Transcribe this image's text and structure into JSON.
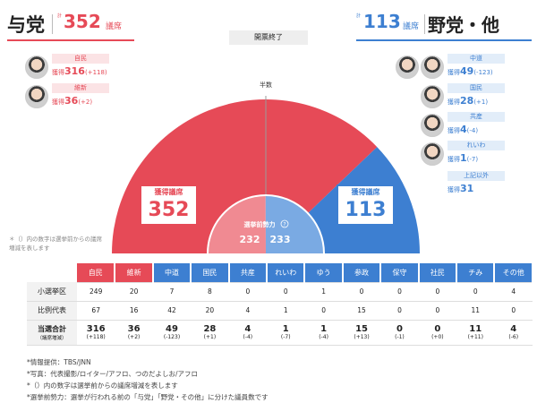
{
  "header": {
    "ruling": {
      "label": "与党",
      "total_prefix": "計",
      "seats": "352",
      "unit": "議席"
    },
    "opposition": {
      "label": "野党・他",
      "total_prefix": "計",
      "seats": "113",
      "unit": "議席"
    },
    "status": "開票終了"
  },
  "ruling_parties": [
    {
      "name": "自民",
      "seat_label": "獲得",
      "seats": "316",
      "diff": "(+118)"
    },
    {
      "name": "維新",
      "seat_label": "獲得",
      "seats": "36",
      "diff": "(+2)"
    }
  ],
  "opposition_parties": [
    {
      "name": "中道",
      "seat_label": "獲得",
      "seats": "49",
      "diff": "(-123)"
    },
    {
      "name": "国民",
      "seat_label": "獲得",
      "seats": "28",
      "diff": "(+1)"
    },
    {
      "name": "共産",
      "seat_label": "獲得",
      "seats": "4",
      "diff": "(-4)"
    },
    {
      "name": "れいわ",
      "seat_label": "獲得",
      "seats": "1",
      "diff": "(-7)"
    },
    {
      "name": "上記以外",
      "seat_label": "獲得",
      "seats": "31",
      "diff": ""
    }
  ],
  "gauge": {
    "half_label": "半数",
    "total_seats": 465,
    "ruling_seats": 352,
    "opposition_seats": 113,
    "ruling_label": "獲得議席",
    "opposition_label": "獲得議席",
    "ruling_value": "352",
    "opposition_value": "113",
    "pre_label": "選挙前勢力",
    "pre_ruling": "232",
    "pre_opposition": "233",
    "help_icon": "question-circle-icon",
    "colors": {
      "ruling": "#e64a57",
      "opposition": "#3d7fd1",
      "pre_ruling": "#f08a92",
      "pre_opposition": "#7aaae3"
    }
  },
  "note": "＊（）内の数字は選挙前からの議席増減を表します",
  "table": {
    "row_headers": {
      "district": "小選挙区",
      "pr": "比例代表",
      "total": "当選合計",
      "total_sub": "（議席増減）"
    },
    "parties": [
      {
        "name": "自民",
        "color": "#e64a57",
        "district": "249",
        "pr": "67",
        "total": "316",
        "diff": "(+118)"
      },
      {
        "name": "維新",
        "color": "#e64a57",
        "district": "20",
        "pr": "16",
        "total": "36",
        "diff": "(+2)"
      },
      {
        "name": "中道",
        "color": "#3d7fd1",
        "district": "7",
        "pr": "42",
        "total": "49",
        "diff": "(-123)"
      },
      {
        "name": "国民",
        "color": "#3d7fd1",
        "district": "8",
        "pr": "20",
        "total": "28",
        "diff": "(+1)"
      },
      {
        "name": "共産",
        "color": "#3d7fd1",
        "district": "0",
        "pr": "4",
        "total": "4",
        "diff": "(-4)"
      },
      {
        "name": "れいわ",
        "color": "#3d7fd1",
        "district": "0",
        "pr": "1",
        "total": "1",
        "diff": "(-7)"
      },
      {
        "name": "ゆう",
        "color": "#3d7fd1",
        "district": "1",
        "pr": "0",
        "total": "1",
        "diff": "(-4)"
      },
      {
        "name": "参政",
        "color": "#3d7fd1",
        "district": "0",
        "pr": "15",
        "total": "15",
        "diff": "(+13)"
      },
      {
        "name": "保守",
        "color": "#3d7fd1",
        "district": "0",
        "pr": "0",
        "total": "0",
        "diff": "(-1)"
      },
      {
        "name": "社民",
        "color": "#3d7fd1",
        "district": "0",
        "pr": "0",
        "total": "0",
        "diff": "(+0)"
      },
      {
        "name": "チみ",
        "color": "#3d7fd1",
        "district": "0",
        "pr": "11",
        "total": "11",
        "diff": "(+11)"
      },
      {
        "name": "その他",
        "color": "#3d7fd1",
        "district": "4",
        "pr": "0",
        "total": "4",
        "diff": "(-6)"
      }
    ]
  },
  "footnotes": [
    "*情報提供：TBS/JNN",
    "*写真：代表撮影/ロイター/アフロ、つのだよしお/アフロ",
    "*（）内の数字は選挙前からの議席増減を表します",
    "*選挙前勢力：選挙が行われる前の「与党」「野党・その他」に分けた議員数です"
  ]
}
